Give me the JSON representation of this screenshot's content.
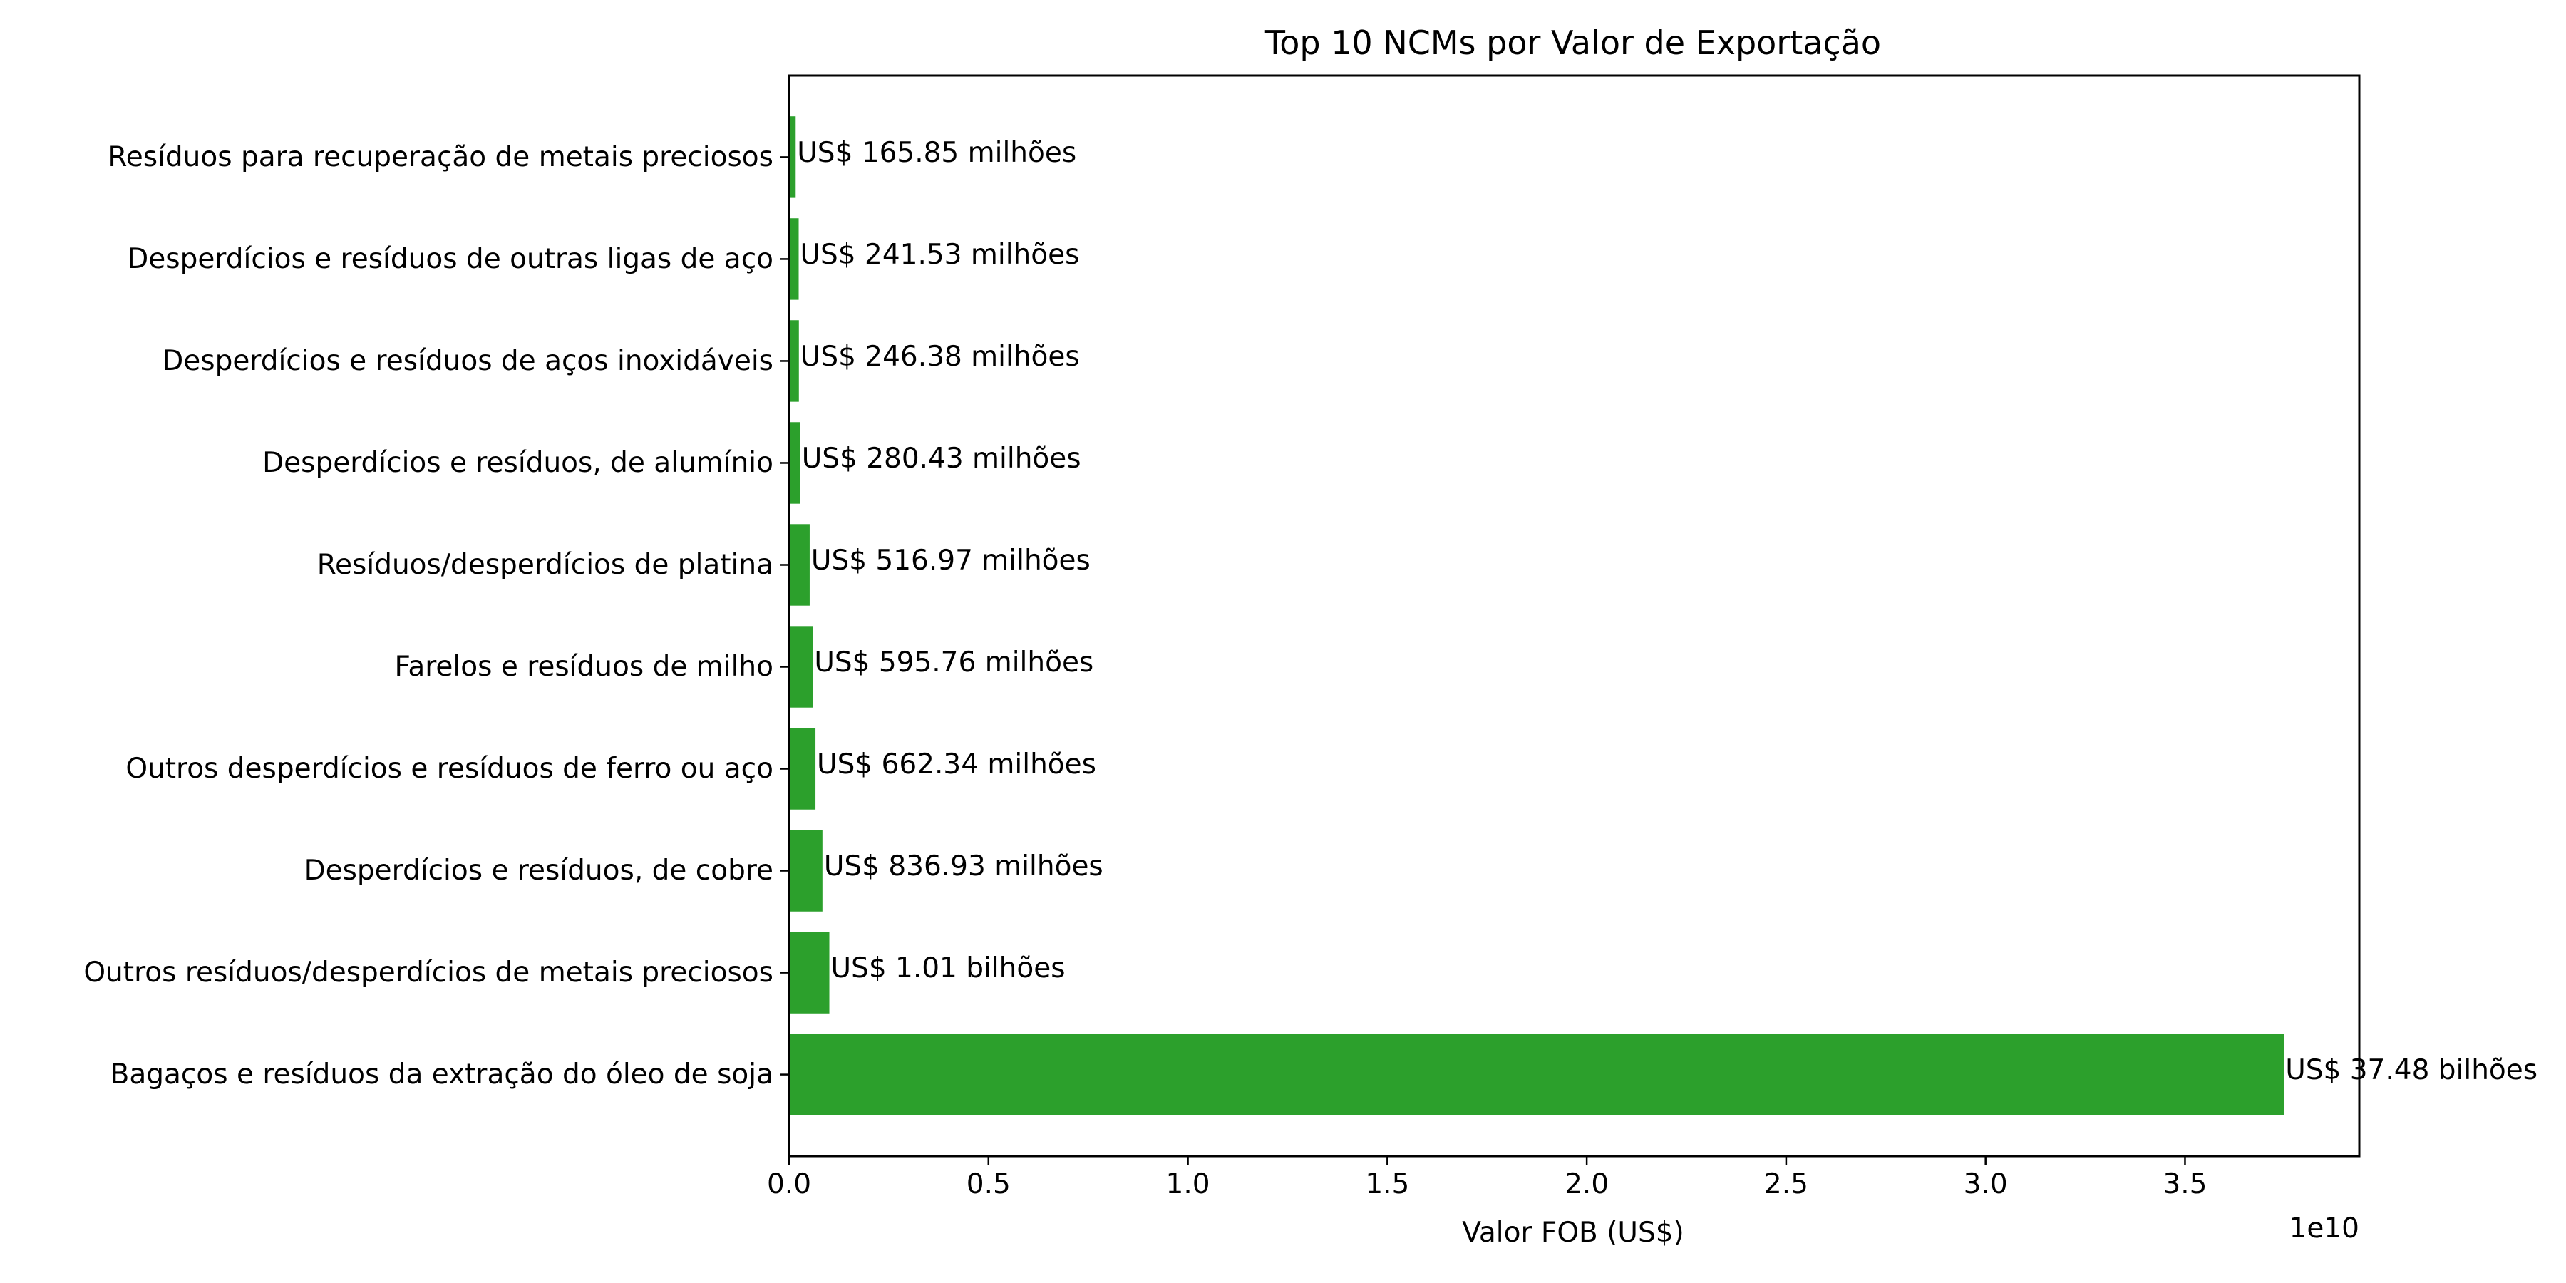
{
  "chart_data": {
    "type": "bar",
    "orientation": "horizontal",
    "title": "Top 10 NCMs por Valor de Exportação",
    "xlabel": "Valor FOB (US$)",
    "ylabel": "",
    "x_offset_label": "1e10",
    "xlim": [
      0,
      39370000000.0
    ],
    "xticks": [
      0,
      5000000000.0,
      10000000000.0,
      15000000000.0,
      20000000000.0,
      25000000000.0,
      30000000000.0,
      35000000000.0
    ],
    "xtick_labels": [
      "0.0",
      "0.5",
      "1.0",
      "1.5",
      "2.0",
      "2.5",
      "3.0",
      "3.5"
    ],
    "grid": false,
    "bar_color": "#2ca02c",
    "categories": [
      "Bagaços e resíduos da extração do óleo de soja",
      "Outros resíduos/desperdícios de metais preciosos",
      "Desperdícios e resíduos, de cobre",
      "Outros desperdícios e resíduos de ferro ou aço",
      "Farelos e resíduos de milho",
      "Resíduos/desperdícios de platina",
      "Desperdícios e resíduos, de alumínio",
      "Desperdícios e resíduos de aços inoxidáveis",
      "Desperdícios e resíduos de outras ligas de aço",
      "Resíduos para recuperação de metais preciosos"
    ],
    "values": [
      37480000000,
      1010000000,
      836930000,
      662340000,
      595760000,
      516970000,
      280430000,
      246380000,
      241530000,
      165850000
    ],
    "value_labels": [
      "US$ 37.48 bilhões",
      "US$ 1.01 bilhões",
      "US$ 836.93 milhões",
      "US$ 662.34 milhões",
      "US$ 595.76 milhões",
      "US$ 516.97 milhões",
      "US$ 280.43 milhões",
      "US$ 246.38 milhões",
      "US$ 241.53 milhões",
      "US$ 165.85 milhões"
    ]
  }
}
